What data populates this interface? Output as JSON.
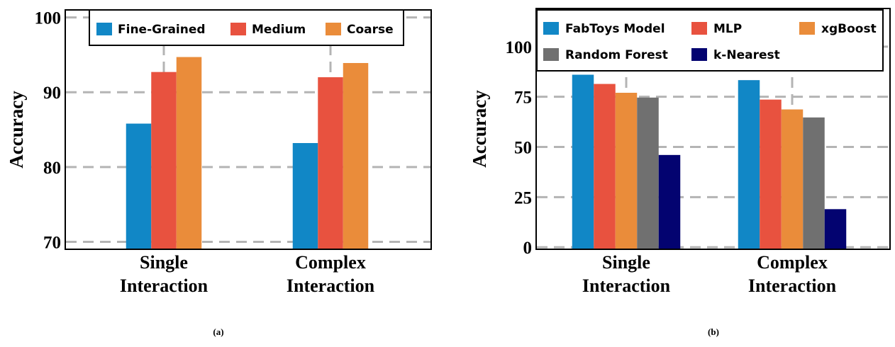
{
  "charts": {
    "a": {
      "caption": "(a)"
    },
    "b": {
      "caption": "(b)"
    }
  },
  "chart_data": [
    {
      "type": "bar",
      "title": "",
      "xlabel": "",
      "ylabel": "Accuracy",
      "ylim": [
        69,
        101
      ],
      "yticks": [
        "70",
        "80",
        "90",
        "100"
      ],
      "grid": true,
      "legend": "top",
      "categories": [
        [
          "Single",
          "Interaction"
        ],
        [
          "Complex",
          "Interaction"
        ]
      ],
      "series": [
        {
          "name": "Fine-Grained",
          "color": "#1187c6",
          "values": [
            85.8,
            83.2
          ]
        },
        {
          "name": "Medium",
          "color": "#e8523f",
          "values": [
            92.7,
            92.0
          ]
        },
        {
          "name": "Coarse",
          "color": "#ea8c3a",
          "values": [
            94.7,
            93.9
          ]
        }
      ]
    },
    {
      "type": "bar",
      "title": "",
      "xlabel": "",
      "ylabel": "Accuracy",
      "ylim": [
        -1,
        119
      ],
      "yticks": [
        "0",
        "25",
        "50",
        "75",
        "100"
      ],
      "grid": true,
      "legend": "top",
      "categories": [
        [
          "Single",
          "Interaction"
        ],
        [
          "Complex",
          "Interaction"
        ]
      ],
      "series": [
        {
          "name": "FabToys Model",
          "color": "#1187c6",
          "values": [
            86.0,
            83.3
          ]
        },
        {
          "name": "MLP",
          "color": "#e8523f",
          "values": [
            81.4,
            73.6
          ]
        },
        {
          "name": "xgBoost",
          "color": "#ea8c3a",
          "values": [
            77.0,
            68.7
          ]
        },
        {
          "name": "Random Forest",
          "color": "#707070",
          "values": [
            74.6,
            64.7
          ]
        },
        {
          "name": "k-Nearest",
          "color": "#030370",
          "values": [
            46.0,
            19.0
          ]
        }
      ]
    }
  ]
}
